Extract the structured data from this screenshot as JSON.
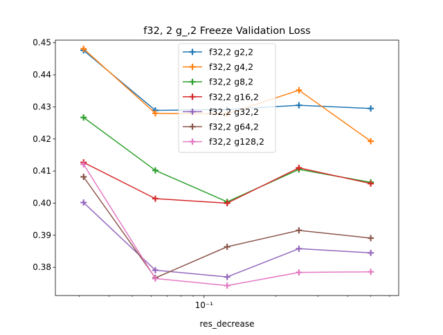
{
  "chart_data": {
    "type": "line",
    "title": "f32, 2 g_,2 Freeze Validation Loss",
    "xlabel": "res_decrease",
    "ylabel": "",
    "x_scale": "log",
    "x": [
      0.03125,
      0.0625,
      0.125,
      0.25,
      0.5
    ],
    "xlim": [
      0.0238,
      0.655
    ],
    "ylim": [
      0.3712,
      0.4508
    ],
    "x_major_ticks": [
      {
        "value": 0.1,
        "label": "10⁻¹"
      }
    ],
    "y_ticks": [
      {
        "value": 0.38,
        "label": "0.38"
      },
      {
        "value": 0.39,
        "label": "0.39"
      },
      {
        "value": 0.4,
        "label": "0.40"
      },
      {
        "value": 0.41,
        "label": "0.41"
      },
      {
        "value": 0.42,
        "label": "0.42"
      },
      {
        "value": 0.43,
        "label": "0.43"
      },
      {
        "value": 0.44,
        "label": "0.44"
      },
      {
        "value": 0.45,
        "label": "0.45"
      }
    ],
    "marker": "plus",
    "legend_position": "upper center",
    "series": [
      {
        "name": "f32,2 g2,2",
        "color": "#1f77b4",
        "values": [
          0.4476,
          0.4289,
          0.4292,
          0.4305,
          0.4295
        ]
      },
      {
        "name": "f32,2 g4,2",
        "color": "#ff7f0e",
        "values": [
          0.4481,
          0.428,
          0.4278,
          0.4352,
          0.4193
        ]
      },
      {
        "name": "f32,2 g8,2",
        "color": "#2ca02c",
        "values": [
          0.4267,
          0.4102,
          0.4004,
          0.4105,
          0.4065
        ]
      },
      {
        "name": "f32,2 g16,2",
        "color": "#d62728",
        "values": [
          0.4127,
          0.4014,
          0.4,
          0.411,
          0.4061
        ]
      },
      {
        "name": "f32,2 g32,2",
        "color": "#9467bd",
        "values": [
          0.4002,
          0.3791,
          0.377,
          0.3858,
          0.3845
        ]
      },
      {
        "name": "f32,2 g64,2",
        "color": "#8c564b",
        "values": [
          0.4082,
          0.3767,
          0.3864,
          0.3915,
          0.3891
        ]
      },
      {
        "name": "f32,2 g128,2",
        "color": "#e377c2",
        "values": [
          0.4121,
          0.3765,
          0.3743,
          0.3784,
          0.3786
        ]
      }
    ]
  }
}
